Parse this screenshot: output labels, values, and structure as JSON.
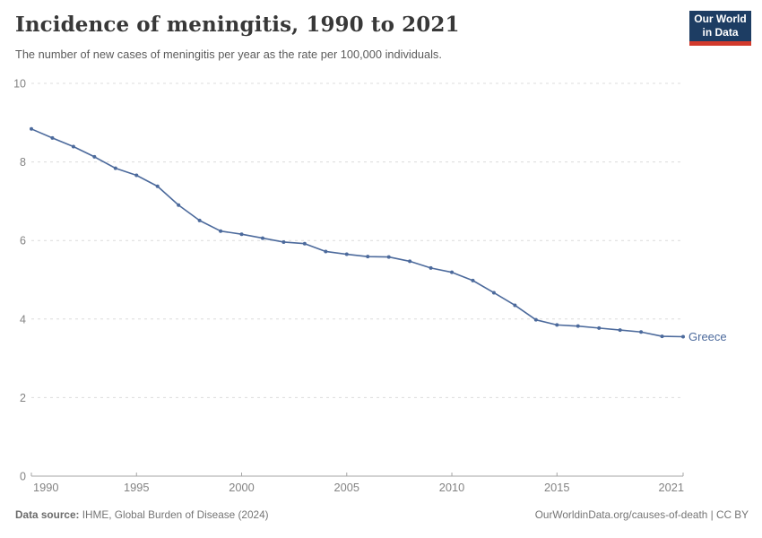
{
  "header": {
    "title": "Incidence of meningitis, 1990 to 2021",
    "subtitle": "The number of new cases of meningitis per year as the rate per 100,000 individuals.",
    "logo": {
      "line1": "Our World",
      "line2": "in Data"
    }
  },
  "chart_data": {
    "type": "line",
    "title": "Incidence of meningitis, 1990 to 2021",
    "xlabel": "",
    "ylabel": "",
    "x": [
      1990,
      1991,
      1992,
      1993,
      1994,
      1995,
      1996,
      1997,
      1998,
      1999,
      2000,
      2001,
      2002,
      2003,
      2004,
      2005,
      2006,
      2007,
      2008,
      2009,
      2010,
      2011,
      2012,
      2013,
      2014,
      2015,
      2016,
      2017,
      2018,
      2019,
      2020,
      2021
    ],
    "series": [
      {
        "name": "Greece",
        "color": "#4C6A9C",
        "values": [
          8.84,
          8.61,
          8.39,
          8.13,
          7.84,
          7.66,
          7.38,
          6.9,
          6.51,
          6.24,
          6.16,
          6.06,
          5.96,
          5.92,
          5.72,
          5.65,
          5.59,
          5.58,
          5.47,
          5.3,
          5.19,
          4.98,
          4.67,
          4.35,
          3.98,
          3.85,
          3.82,
          3.77,
          3.72,
          3.67,
          3.56,
          3.55
        ]
      }
    ],
    "ylim": [
      0,
      10
    ],
    "yticks": [
      0,
      2,
      4,
      6,
      8,
      10
    ],
    "xticks": [
      1990,
      1995,
      2000,
      2005,
      2010,
      2015,
      2021
    ],
    "grid": "horizontal-dashed",
    "legend_position": "end-of-line-label"
  },
  "footer": {
    "data_source_label": "Data source:",
    "data_source_value": "IHME, Global Burden of Disease (2024)",
    "url": "OurWorldinData.org/causes-of-death",
    "separator": " | ",
    "license": "CC BY"
  },
  "colors": {
    "line": "#4C6A9C",
    "logo_navy": "#1d3d63",
    "logo_red": "#d23a2c",
    "gridline": "#dcdcdc",
    "axis": "#a5a5a5",
    "tick_label": "#838383"
  }
}
